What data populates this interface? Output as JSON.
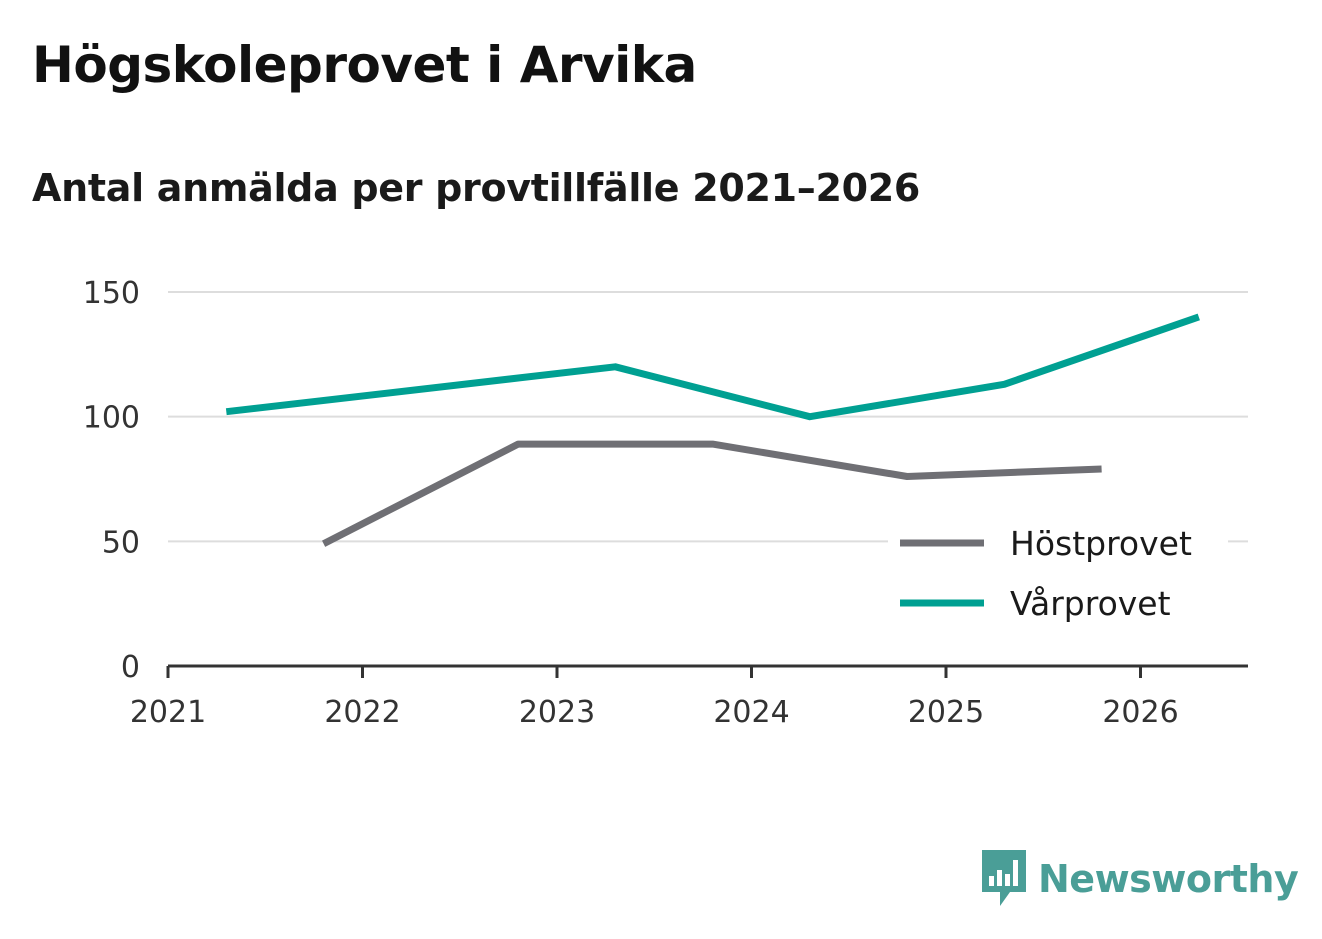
{
  "header": {
    "title": "Högskoleprovet i Arvika",
    "subtitle": "Antal anmälda per provtillfälle 2021–2026"
  },
  "brand": {
    "name": "Newsworthy",
    "icon": "newsworthy-logo-icon",
    "color": "#4a9e97"
  },
  "chart_data": {
    "type": "line",
    "title": "Högskoleprovet i Arvika",
    "subtitle": "Antal anmälda per provtillfälle 2021–2026",
    "xlabel": "",
    "ylabel": "",
    "xlim": [
      2021,
      2026.55
    ],
    "ylim": [
      0,
      150
    ],
    "x_ticks": [
      "2021",
      "2022",
      "2023",
      "2024",
      "2025",
      "2026"
    ],
    "y_ticks": [
      "0",
      "50",
      "100",
      "150"
    ],
    "grid": true,
    "legend_position": "bottom-right",
    "series": [
      {
        "name": "Höstprovet",
        "color": "#6f6f74",
        "points": [
          {
            "x": 2021.8,
            "y": 49
          },
          {
            "x": 2022.8,
            "y": 89
          },
          {
            "x": 2023.8,
            "y": 89
          },
          {
            "x": 2024.8,
            "y": 76
          },
          {
            "x": 2025.8,
            "y": 79
          }
        ]
      },
      {
        "name": "Vårprovet",
        "color": "#00a092",
        "points": [
          {
            "x": 2021.3,
            "y": 102
          },
          {
            "x": 2023.3,
            "y": 120
          },
          {
            "x": 2024.3,
            "y": 100
          },
          {
            "x": 2025.3,
            "y": 113
          },
          {
            "x": 2026.3,
            "y": 140
          }
        ]
      }
    ]
  }
}
